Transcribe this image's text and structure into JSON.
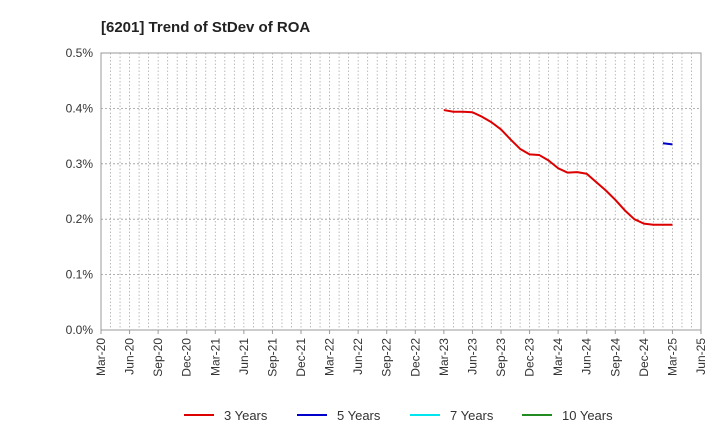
{
  "chart_data": {
    "type": "line",
    "title": "[6201]  Trend of StDev of ROA",
    "xlabel": "",
    "ylabel": "",
    "x_ticks": [
      "Mar-20",
      "Jun-20",
      "Sep-20",
      "Dec-20",
      "Mar-21",
      "Jun-21",
      "Sep-21",
      "Dec-21",
      "Mar-22",
      "Jun-22",
      "Sep-22",
      "Dec-22",
      "Mar-23",
      "Jun-23",
      "Sep-23",
      "Dec-23",
      "Mar-24",
      "Jun-24",
      "Sep-24",
      "Dec-24",
      "Mar-25",
      "Jun-25"
    ],
    "y_ticks": [
      "0.0%",
      "0.1%",
      "0.2%",
      "0.3%",
      "0.4%",
      "0.5%"
    ],
    "ylim": [
      0,
      0.5
    ],
    "y_unit": "%",
    "grid": "vertical dotted, horizontal dotted",
    "legend_position": "bottom",
    "series": [
      {
        "name": "3 Years",
        "color": "#dd0000",
        "points": [
          [
            "Mar-23",
            0.397
          ],
          [
            "Apr-23",
            0.394
          ],
          [
            "May-23",
            0.394
          ],
          [
            "Jun-23",
            0.393
          ],
          [
            "Jul-23",
            0.385
          ],
          [
            "Aug-23",
            0.375
          ],
          [
            "Sep-23",
            0.362
          ],
          [
            "Oct-23",
            0.344
          ],
          [
            "Nov-23",
            0.327
          ],
          [
            "Dec-23",
            0.317
          ],
          [
            "Jan-24",
            0.316
          ],
          [
            "Feb-24",
            0.306
          ],
          [
            "Mar-24",
            0.292
          ],
          [
            "Apr-24",
            0.284
          ],
          [
            "May-24",
            0.285
          ],
          [
            "Jun-24",
            0.282
          ],
          [
            "Jul-24",
            0.267
          ],
          [
            "Aug-24",
            0.252
          ],
          [
            "Sep-24",
            0.235
          ],
          [
            "Oct-24",
            0.216
          ],
          [
            "Nov-24",
            0.2
          ],
          [
            "Dec-24",
            0.192
          ],
          [
            "Jan-25",
            0.19
          ],
          [
            "Feb-25",
            0.19
          ],
          [
            "Mar-25",
            0.19
          ]
        ]
      },
      {
        "name": "5 Years",
        "color": "#0000cc",
        "points": [
          [
            "Feb-25",
            0.337
          ],
          [
            "Mar-25",
            0.335
          ]
        ]
      },
      {
        "name": "7 Years",
        "color": "#00e5ee",
        "points": []
      },
      {
        "name": "10 Years",
        "color": "#228b22",
        "points": []
      }
    ]
  }
}
